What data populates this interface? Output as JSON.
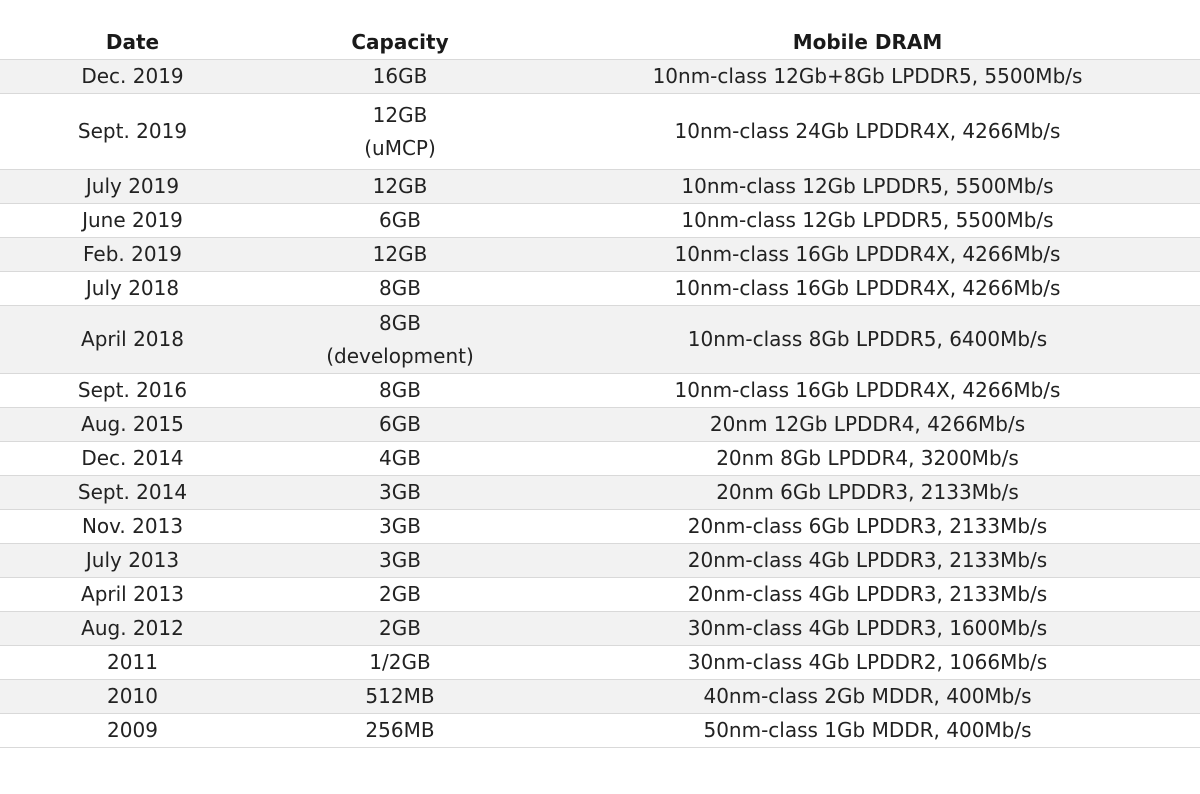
{
  "table": {
    "headers": {
      "date": "Date",
      "capacity": "Capacity",
      "dram": "Mobile DRAM"
    },
    "rows": [
      {
        "date": "Dec. 2019",
        "capacity": "16GB",
        "capacity2": "",
        "dram": "10nm-class 12Gb+8Gb LPDDR5, 5500Mb/s"
      },
      {
        "date": "Sept. 2019",
        "capacity": "12GB",
        "capacity2": "(uMCP)",
        "dram": "10nm-class 24Gb LPDDR4X, 4266Mb/s"
      },
      {
        "date": "July 2019",
        "capacity": "12GB",
        "capacity2": "",
        "dram": "10nm-class 12Gb LPDDR5, 5500Mb/s"
      },
      {
        "date": "June 2019",
        "capacity": "6GB",
        "capacity2": "",
        "dram": "10nm-class 12Gb LPDDR5, 5500Mb/s"
      },
      {
        "date": "Feb. 2019",
        "capacity": "12GB",
        "capacity2": "",
        "dram": "10nm-class 16Gb LPDDR4X, 4266Mb/s"
      },
      {
        "date": "July 2018",
        "capacity": "8GB",
        "capacity2": "",
        "dram": "10nm-class 16Gb LPDDR4X, 4266Mb/s"
      },
      {
        "date": "April 2018",
        "capacity": "8GB",
        "capacity2": "(development)",
        "dram": "10nm-class 8Gb LPDDR5, 6400Mb/s"
      },
      {
        "date": "Sept. 2016",
        "capacity": "8GB",
        "capacity2": "",
        "dram": "10nm-class 16Gb LPDDR4X, 4266Mb/s"
      },
      {
        "date": "Aug. 2015",
        "capacity": "6GB",
        "capacity2": "",
        "dram": "20nm 12Gb LPDDR4, 4266Mb/s"
      },
      {
        "date": "Dec. 2014",
        "capacity": "4GB",
        "capacity2": "",
        "dram": "20nm 8Gb LPDDR4, 3200Mb/s"
      },
      {
        "date": "Sept. 2014",
        "capacity": "3GB",
        "capacity2": "",
        "dram": "20nm 6Gb LPDDR3, 2133Mb/s"
      },
      {
        "date": "Nov. 2013",
        "capacity": "3GB",
        "capacity2": "",
        "dram": "20nm-class 6Gb LPDDR3, 2133Mb/s"
      },
      {
        "date": "July 2013",
        "capacity": "3GB",
        "capacity2": "",
        "dram": "20nm-class 4Gb LPDDR3, 2133Mb/s"
      },
      {
        "date": "April 2013",
        "capacity": "2GB",
        "capacity2": "",
        "dram": "20nm-class 4Gb LPDDR3, 2133Mb/s"
      },
      {
        "date": "Aug. 2012",
        "capacity": "2GB",
        "capacity2": "",
        "dram": "30nm-class 4Gb LPDDR3, 1600Mb/s"
      },
      {
        "date": "2011",
        "capacity": "1/2GB",
        "capacity2": "",
        "dram": "30nm-class 4Gb LPDDR2, 1066Mb/s"
      },
      {
        "date": "2010",
        "capacity": "512MB",
        "capacity2": "",
        "dram": "40nm-class 2Gb MDDR, 400Mb/s"
      },
      {
        "date": "2009",
        "capacity": "256MB",
        "capacity2": "",
        "dram": "50nm-class 1Gb MDDR, 400Mb/s"
      }
    ]
  }
}
